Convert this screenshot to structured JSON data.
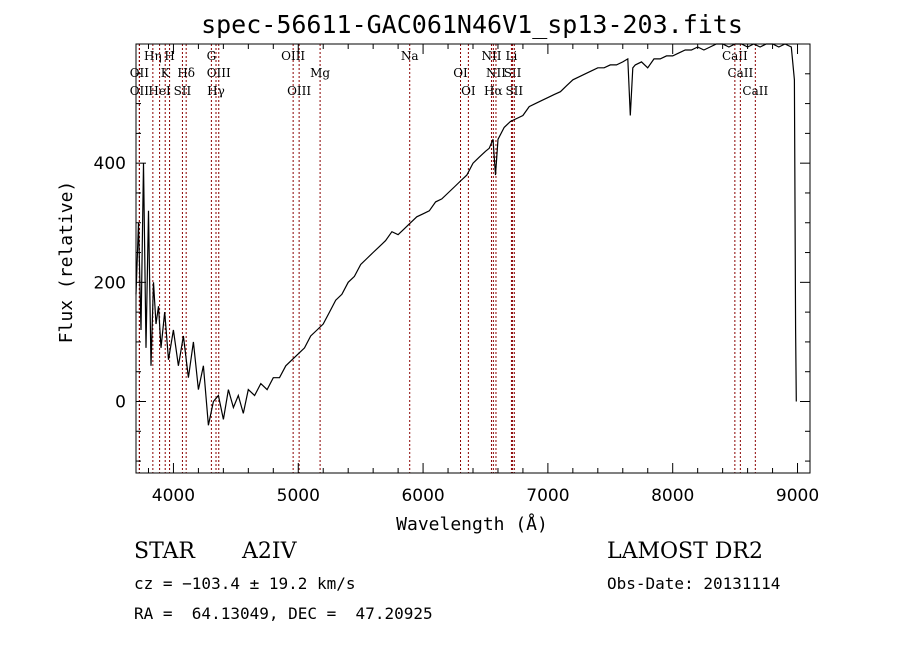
{
  "chart_data": {
    "type": "line",
    "title": "spec-56611-GAC061N46V1_sp13-203.fits",
    "xlabel": "Wavelength (Å)",
    "ylabel": "Flux (relative)",
    "xlim": [
      3700,
      9100
    ],
    "ylim": [
      -120,
      600
    ],
    "xticks": [
      4000,
      5000,
      6000,
      7000,
      8000,
      9000
    ],
    "yticks": [
      0,
      200,
      400
    ],
    "line_color": "#000000",
    "marker_color": "#8b0000",
    "series": [
      {
        "x": [
          3700,
          3720,
          3740,
          3760,
          3780,
          3800,
          3820,
          3840,
          3860,
          3880,
          3900,
          3930,
          3960,
          4000,
          4040,
          4080,
          4120,
          4160,
          4200,
          4240,
          4280,
          4320,
          4360,
          4400,
          4440,
          4480,
          4520,
          4560,
          4600,
          4650,
          4700,
          4750,
          4800,
          4850,
          4900,
          4950,
          5000,
          5050,
          5100,
          5150,
          5200,
          5250,
          5300,
          5350,
          5400,
          5450,
          5500,
          5550,
          5600,
          5650,
          5700,
          5750,
          5800,
          5850,
          5900,
          5950,
          6000,
          6050,
          6100,
          6150,
          6200,
          6250,
          6300,
          6350,
          6400,
          6450,
          6500,
          6530,
          6560,
          6580,
          6600,
          6650,
          6700,
          6750,
          6800,
          6850,
          6900,
          6950,
          7000,
          7050,
          7100,
          7150,
          7200,
          7250,
          7300,
          7350,
          7400,
          7450,
          7500,
          7550,
          7600,
          7640,
          7660,
          7680,
          7700,
          7750,
          7800,
          7850,
          7900,
          7950,
          8000,
          8050,
          8100,
          8150,
          8200,
          8250,
          8300,
          8350,
          8400,
          8450,
          8500,
          8550,
          8600,
          8650,
          8700,
          8750,
          8800,
          8850,
          8900,
          8950,
          8975,
          8985,
          8990
        ],
        "y": [
          180,
          300,
          120,
          400,
          90,
          320,
          60,
          200,
          130,
          160,
          90,
          150,
          70,
          120,
          60,
          110,
          40,
          100,
          20,
          60,
          -40,
          0,
          10,
          -30,
          20,
          -10,
          10,
          -20,
          20,
          10,
          30,
          20,
          40,
          40,
          60,
          70,
          80,
          90,
          110,
          120,
          130,
          150,
          170,
          180,
          200,
          210,
          230,
          240,
          250,
          260,
          270,
          285,
          280,
          290,
          300,
          310,
          315,
          320,
          335,
          340,
          350,
          360,
          370,
          380,
          400,
          410,
          420,
          425,
          440,
          380,
          440,
          460,
          470,
          475,
          480,
          495,
          500,
          505,
          510,
          515,
          520,
          530,
          540,
          545,
          550,
          555,
          560,
          560,
          565,
          565,
          570,
          575,
          480,
          560,
          565,
          570,
          560,
          575,
          575,
          580,
          580,
          585,
          590,
          590,
          595,
          590,
          595,
          600,
          600,
          595,
          600,
          600,
          595,
          600,
          595,
          600,
          600,
          595,
          600,
          595,
          540,
          120,
          0
        ]
      }
    ],
    "spectral_lines": [
      {
        "name": "Hη",
        "wavelength": 3835,
        "row": 1
      },
      {
        "name": "H",
        "wavelength": 3969,
        "row": 1
      },
      {
        "name": "OII",
        "wavelength": 3727,
        "row": 2
      },
      {
        "name": "K",
        "wavelength": 3934,
        "row": 2
      },
      {
        "name": "Hδ",
        "wavelength": 4102,
        "row": 2
      },
      {
        "name": "OII",
        "wavelength": 3727,
        "row": 3
      },
      {
        "name": "HeI",
        "wavelength": 3889,
        "row": 3
      },
      {
        "name": "SII",
        "wavelength": 4072,
        "row": 3
      },
      {
        "name": "G",
        "wavelength": 4304,
        "row": 1
      },
      {
        "name": "OIII",
        "wavelength": 4363,
        "row": 2
      },
      {
        "name": "Hγ",
        "wavelength": 4341,
        "row": 3
      },
      {
        "name": "OIII",
        "wavelength": 4959,
        "row": 1
      },
      {
        "name": "Mg",
        "wavelength": 5175,
        "row": 2
      },
      {
        "name": "OIII",
        "wavelength": 5007,
        "row": 3
      },
      {
        "name": "Na",
        "wavelength": 5893,
        "row": 1
      },
      {
        "name": "OI",
        "wavelength": 6300,
        "row": 2
      },
      {
        "name": "OI",
        "wavelength": 6363,
        "row": 3
      },
      {
        "name": "NII",
        "wavelength": 6548,
        "row": 1
      },
      {
        "name": "Li",
        "wavelength": 6708,
        "row": 1
      },
      {
        "name": "NII",
        "wavelength": 6584,
        "row": 2
      },
      {
        "name": "SII",
        "wavelength": 6717,
        "row": 2
      },
      {
        "name": "Hα",
        "wavelength": 6563,
        "row": 3
      },
      {
        "name": "SII",
        "wavelength": 6731,
        "row": 3
      },
      {
        "name": "CaII",
        "wavelength": 8498,
        "row": 1
      },
      {
        "name": "CaII",
        "wavelength": 8542,
        "row": 2
      },
      {
        "name": "CaII",
        "wavelength": 8662,
        "row": 3
      }
    ]
  },
  "info": {
    "class": "STAR",
    "subclass": "A2IV",
    "survey": "LAMOST DR2",
    "cz": "cz = −103.4 ± 19.2 km/s",
    "obs_date": "Obs-Date: 20131114",
    "coords": "RA =  64.13049, DEC =  47.20925"
  }
}
